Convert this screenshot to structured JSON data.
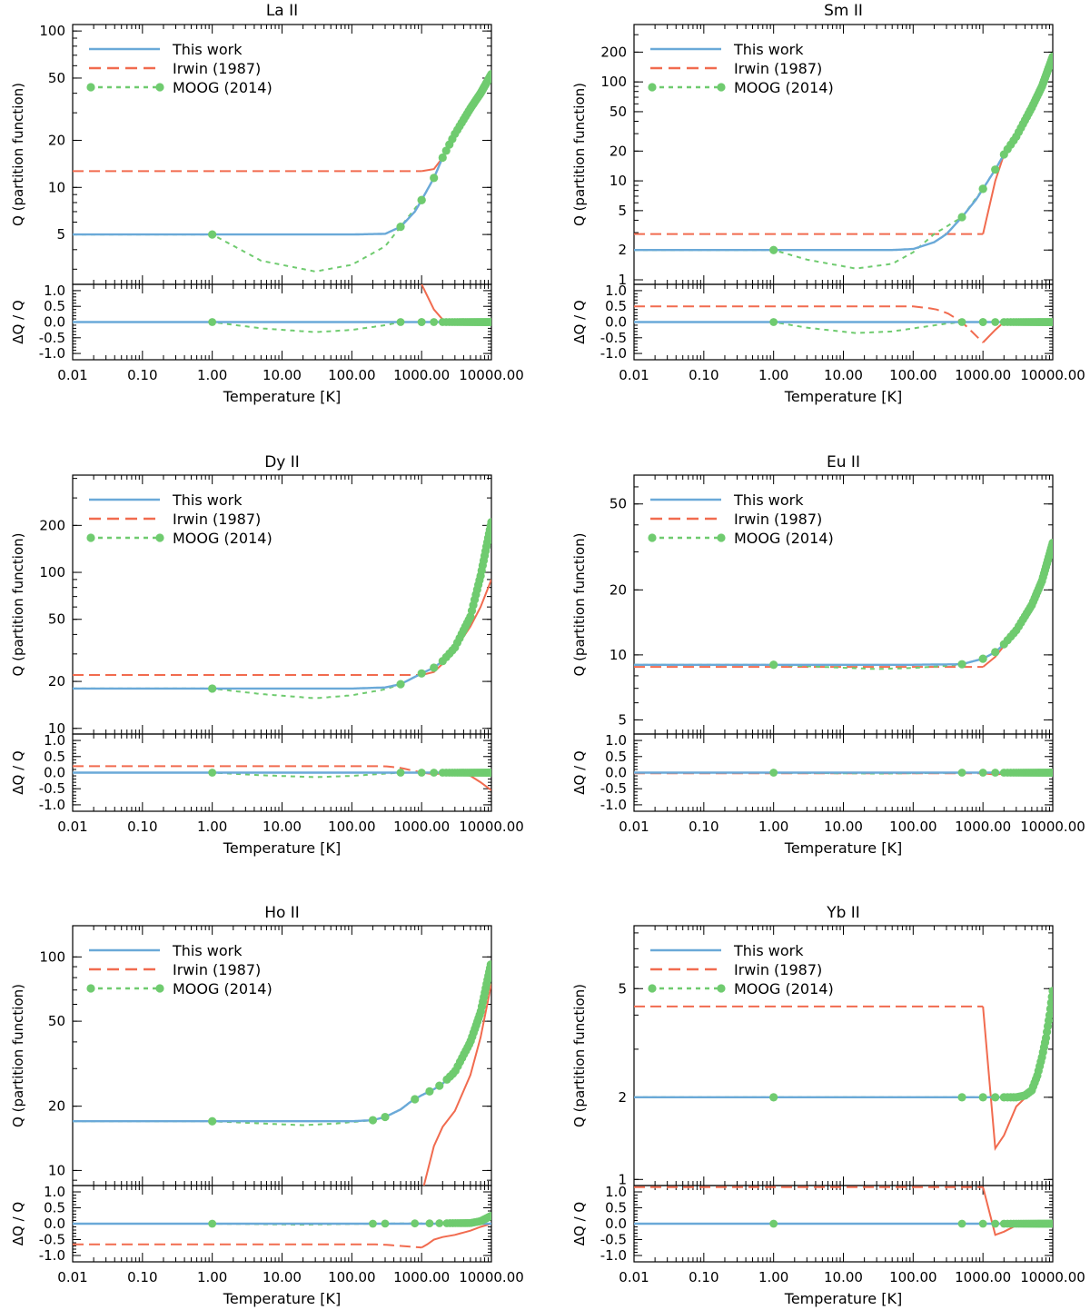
{
  "figure": {
    "xlabel": "Temperature [K]",
    "ylabel_top": "Q (partition function)",
    "ylabel_bottom": "ΔQ / Q",
    "x_ticks": [
      0.01,
      0.1,
      1,
      10,
      100,
      1000,
      10000
    ],
    "x_tick_labels": [
      "0.01",
      "0.10",
      "1.00",
      "10.00",
      "100.00",
      "1000.00",
      "10000.00"
    ],
    "resid_ticks": [
      1.0,
      0.5,
      0.0,
      -0.5,
      -1.0
    ],
    "resid_tick_labels": [
      "1.0",
      "0.5",
      "0.0",
      "-0.5",
      "-1.0"
    ],
    "legend": [
      {
        "label": "This work",
        "style": "solid",
        "color": "#6aa9d8"
      },
      {
        "label": "Irwin (1987)",
        "style": "dashed",
        "color": "#f16b4f"
      },
      {
        "label": "MOOG (2014)",
        "style": "dotted-circles",
        "color": "#6fcb6f"
      }
    ],
    "colors": {
      "this_work": "#6aa9d8",
      "irwin": "#f16b4f",
      "moog": "#6fcb6f"
    }
  },
  "chart_data": [
    {
      "type": "line",
      "title": "La II",
      "xscale": "log",
      "yscale": "log",
      "xlim": [
        0.01,
        10000
      ],
      "ylim": [
        2.4,
        110
      ],
      "ylim_resid": [
        -1.2,
        1.2
      ],
      "yticks": [
        5,
        10,
        20,
        50,
        100
      ],
      "ytick_labels": [
        "5",
        "10",
        "20",
        "50",
        "100"
      ],
      "this_work": {
        "T": [
          0.01,
          1,
          100,
          300,
          500,
          800,
          1000,
          1500,
          2000,
          3000,
          5000,
          7000,
          10000
        ],
        "Q": [
          5.0,
          5.0,
          5.0,
          5.05,
          5.6,
          7.0,
          8.3,
          11.5,
          15.5,
          22,
          32,
          40,
          53
        ]
      },
      "irwin": {
        "T": [
          0.01,
          1000,
          1500,
          2000,
          3000,
          5000,
          7000,
          10000
        ],
        "Q": [
          12.7,
          12.7,
          13.1,
          15.5,
          22,
          32,
          40,
          53
        ]
      },
      "moog": {
        "T": [
          0.01,
          1,
          5,
          30,
          100,
          300,
          500,
          1000,
          1500,
          2000,
          3000,
          5000,
          7000,
          10000
        ],
        "Q": [
          5.0,
          5.0,
          3.4,
          2.9,
          3.2,
          4.2,
          5.6,
          8.3,
          11.5,
          15.5,
          22,
          32,
          40,
          53
        ]
      },
      "moog_markers": [
        1,
        500,
        1000
      ],
      "resid_irwin": {
        "T": [
          1000,
          1500,
          2000,
          3000,
          10000
        ],
        "R": [
          1.2,
          0.4,
          0.08,
          0.0,
          0.0
        ]
      },
      "resid_moog": {
        "T": [
          0.01,
          1,
          5,
          30,
          100,
          300,
          500,
          10000
        ],
        "R": [
          0.0,
          0.0,
          -0.2,
          -0.32,
          -0.25,
          -0.1,
          0.0,
          0.0
        ]
      }
    },
    {
      "type": "line",
      "title": "Sm II",
      "xscale": "log",
      "yscale": "log",
      "xlim": [
        0.01,
        10000
      ],
      "ylim": [
        0.9,
        380
      ],
      "ylim_resid": [
        -1.2,
        1.2
      ],
      "yticks": [
        1,
        2,
        5,
        10,
        20,
        50,
        100,
        200
      ],
      "ytick_labels": [
        "1",
        "2",
        "5",
        "10",
        "20",
        "50",
        "100",
        "200"
      ],
      "this_work": {
        "T": [
          0.01,
          1,
          50,
          100,
          200,
          300,
          500,
          800,
          1000,
          1500,
          2000,
          3000,
          5000,
          7000,
          10000
        ],
        "Q": [
          2.0,
          2.0,
          2.0,
          2.05,
          2.4,
          2.9,
          4.3,
          6.5,
          8.3,
          13,
          18.5,
          28,
          55,
          90,
          180
        ]
      },
      "irwin": {
        "T": [
          0.01,
          1000,
          1500,
          2000,
          3000,
          5000,
          7000,
          10000
        ],
        "Q": [
          2.9,
          2.9,
          10,
          18.5,
          28,
          55,
          90,
          180
        ]
      },
      "moog": {
        "T": [
          0.01,
          1,
          3,
          15,
          50,
          100,
          200,
          500,
          1000,
          1500,
          2000,
          3000,
          5000,
          7000,
          10000
        ],
        "Q": [
          2.0,
          2.0,
          1.6,
          1.3,
          1.45,
          1.9,
          2.9,
          4.3,
          8.3,
          13,
          18.5,
          28,
          55,
          90,
          180
        ]
      },
      "moog_markers": [
        1,
        500,
        1000
      ],
      "resid_irwin": {
        "T": [
          0.01,
          100,
          200,
          300,
          500,
          1000,
          1500,
          2000,
          3000,
          10000
        ],
        "R": [
          0.5,
          0.5,
          0.42,
          0.3,
          0.0,
          -0.65,
          -0.25,
          0.0,
          0.0,
          0.0
        ]
      },
      "resid_moog": {
        "T": [
          0.01,
          1,
          3,
          15,
          50,
          100,
          300,
          500,
          10000
        ],
        "R": [
          0.0,
          0.0,
          -0.18,
          -0.35,
          -0.3,
          -0.2,
          -0.05,
          0.0,
          0.0
        ]
      }
    },
    {
      "type": "line",
      "title": "Dy II",
      "xscale": "log",
      "yscale": "log",
      "xlim": [
        0.01,
        10000
      ],
      "ylim": [
        9.2,
        420
      ],
      "ylim_resid": [
        -1.2,
        1.2
      ],
      "yticks": [
        10,
        20,
        50,
        100,
        200
      ],
      "ytick_labels": [
        "10",
        "20",
        "50",
        "100",
        "200"
      ],
      "this_work": {
        "T": [
          0.01,
          1,
          100,
          300,
          500,
          1000,
          1500,
          2000,
          3000,
          5000,
          7000,
          10000
        ],
        "Q": [
          18.0,
          18.0,
          18.0,
          18.3,
          19.2,
          22.5,
          24.5,
          27,
          33,
          52,
          95,
          210
        ]
      },
      "irwin": {
        "T": [
          0.01,
          1000,
          1500,
          2000,
          3000,
          5000,
          7000,
          10000
        ],
        "Q": [
          22.0,
          22.0,
          23.0,
          26,
          32,
          45,
          60,
          90
        ]
      },
      "moog": {
        "T": [
          0.01,
          1,
          5,
          30,
          100,
          300,
          500,
          1000,
          1500,
          2000,
          3000,
          5000,
          7000,
          10000
        ],
        "Q": [
          18.0,
          18.0,
          16.6,
          15.6,
          16.3,
          17.8,
          19.2,
          22.5,
          24.5,
          27,
          33,
          52,
          95,
          210
        ]
      },
      "moog_markers": [
        1,
        500
      ],
      "resid_irwin": {
        "T": [
          0.01,
          300,
          500,
          1000,
          1500,
          2000,
          3000,
          5000,
          7000,
          10000
        ],
        "R": [
          0.2,
          0.2,
          0.15,
          0.0,
          -0.05,
          -0.02,
          0.0,
          -0.1,
          -0.3,
          -0.55
        ]
      },
      "resid_moog": {
        "T": [
          0.01,
          1,
          5,
          30,
          100,
          300,
          500,
          10000
        ],
        "R": [
          0.0,
          0.0,
          -0.08,
          -0.14,
          -0.1,
          -0.03,
          0.0,
          0.0
        ]
      }
    },
    {
      "type": "line",
      "title": "Eu II",
      "xscale": "log",
      "yscale": "log",
      "xlim": [
        0.01,
        10000
      ],
      "ylim": [
        4.3,
        68
      ],
      "ylim_resid": [
        -1.2,
        1.2
      ],
      "yticks": [
        5,
        10,
        20,
        50
      ],
      "ytick_labels": [
        "5",
        "10",
        "20",
        "50"
      ],
      "this_work": {
        "T": [
          0.01,
          1,
          100,
          500,
          1000,
          1500,
          2000,
          3000,
          5000,
          7000,
          10000
        ],
        "Q": [
          9.0,
          9.0,
          9.0,
          9.05,
          9.6,
          10.3,
          11.2,
          13,
          17,
          22,
          33
        ]
      },
      "irwin": {
        "T": [
          0.01,
          1000,
          1500,
          2000,
          3000,
          5000,
          7000,
          10000
        ],
        "Q": [
          8.8,
          8.8,
          9.8,
          11,
          13,
          17,
          22,
          33
        ]
      },
      "moog": {
        "T": [
          0.01,
          1,
          5,
          30,
          100,
          300,
          500,
          1000,
          1500,
          2000,
          3000,
          5000,
          7000,
          10000
        ],
        "Q": [
          9.0,
          9.0,
          8.8,
          8.6,
          8.7,
          8.9,
          9.05,
          9.6,
          10.3,
          11.2,
          13,
          17,
          22,
          33
        ]
      },
      "moog_markers": [
        1,
        500
      ],
      "resid_irwin": {
        "T": [
          0.01,
          1000,
          1500,
          2000,
          3000,
          10000
        ],
        "R": [
          -0.02,
          -0.02,
          -0.06,
          -0.03,
          0.0,
          0.0
        ]
      },
      "resid_moog": {
        "T": [
          0.01,
          1,
          30,
          500,
          10000
        ],
        "R": [
          0.0,
          0.0,
          -0.03,
          0.0,
          0.0
        ]
      }
    },
    {
      "type": "line",
      "title": "Ho II",
      "xscale": "log",
      "yscale": "log",
      "xlim": [
        0.01,
        10000
      ],
      "ylim": [
        8.5,
        140
      ],
      "ylim_resid": [
        -1.2,
        1.2
      ],
      "yticks": [
        10,
        20,
        50,
        100
      ],
      "ytick_labels": [
        "10",
        "20",
        "50",
        "100"
      ],
      "this_work": {
        "T": [
          0.01,
          1,
          100,
          200,
          300,
          500,
          700,
          1000,
          1500,
          2000,
          3000,
          5000,
          7000,
          10000
        ],
        "Q": [
          17.0,
          17.0,
          17.0,
          17.2,
          17.8,
          19.3,
          21,
          22.5,
          24,
          25.5,
          29,
          40,
          55,
          85
        ]
      },
      "irwin": {
        "T": [
          1080,
          1500,
          2000,
          3000,
          5000,
          7000,
          10000
        ],
        "Q": [
          8.5,
          13,
          16,
          19,
          28,
          42,
          75
        ]
      },
      "moog": {
        "T": [
          0.01,
          1,
          5,
          20,
          60,
          200,
          300,
          500,
          700,
          1000,
          1500,
          2000,
          3000,
          5000,
          7000,
          10000
        ],
        "Q": [
          17.0,
          17.0,
          16.6,
          16.3,
          16.6,
          17.2,
          17.8,
          19.3,
          21,
          22.5,
          24,
          25.5,
          29,
          40,
          55,
          95
        ]
      },
      "moog_markers": [
        1,
        200
      ],
      "resid_irwin": {
        "T": [
          0.01,
          200,
          300,
          500,
          1000,
          1200,
          1500,
          2000,
          3000,
          5000,
          7000,
          10000
        ],
        "R": [
          -0.65,
          -0.65,
          -0.66,
          -0.7,
          -0.75,
          -0.65,
          -0.5,
          -0.42,
          -0.35,
          -0.22,
          -0.1,
          0.0
        ]
      },
      "resid_moog": {
        "T": [
          0.01,
          1,
          20,
          200,
          5000,
          7000,
          10000
        ],
        "R": [
          0.0,
          0.0,
          -0.03,
          0.0,
          0.02,
          0.08,
          0.25
        ]
      }
    },
    {
      "type": "line",
      "title": "Yb II",
      "xscale": "log",
      "yscale": "log",
      "xlim": [
        0.01,
        10000
      ],
      "ylim": [
        0.95,
        8.5
      ],
      "ylim_resid": [
        -1.2,
        1.2
      ],
      "yticks": [
        1,
        2,
        5
      ],
      "ytick_labels": [
        "1",
        "2",
        "5"
      ],
      "this_work": {
        "T": [
          0.01,
          1,
          500,
          1000,
          2000,
          3000,
          4000,
          5000,
          6000,
          7000,
          8000,
          9000,
          10000
        ],
        "Q": [
          2.0,
          2.0,
          2.0,
          2.0,
          2.0,
          2.0,
          2.03,
          2.12,
          2.4,
          2.8,
          3.3,
          4.0,
          4.9
        ]
      },
      "irwin": {
        "T": [
          0.01,
          1000,
          1500,
          2000,
          3000,
          5000,
          7000,
          10000
        ],
        "Q": [
          4.3,
          4.3,
          1.3,
          1.45,
          1.85,
          2.1,
          2.8,
          4.9
        ]
      },
      "moog": {
        "T": [
          0.01,
          1,
          500,
          1000,
          2000,
          3000,
          4000,
          5000,
          6000,
          7000,
          8000,
          9000,
          10000
        ],
        "Q": [
          2.0,
          2.0,
          2.0,
          2.0,
          2.0,
          2.0,
          2.03,
          2.12,
          2.4,
          2.8,
          3.3,
          4.0,
          4.9
        ]
      },
      "moog_markers": [
        1,
        500
      ],
      "resid_irwin": {
        "T": [
          0.01,
          1000,
          1500,
          2000,
          3000,
          5000,
          10000
        ],
        "R": [
          1.15,
          1.15,
          -0.35,
          -0.25,
          -0.05,
          0.0,
          0.0
        ]
      },
      "resid_moog": {
        "T": [
          0.01,
          10000
        ],
        "R": [
          0.0,
          0.0
        ]
      }
    }
  ]
}
